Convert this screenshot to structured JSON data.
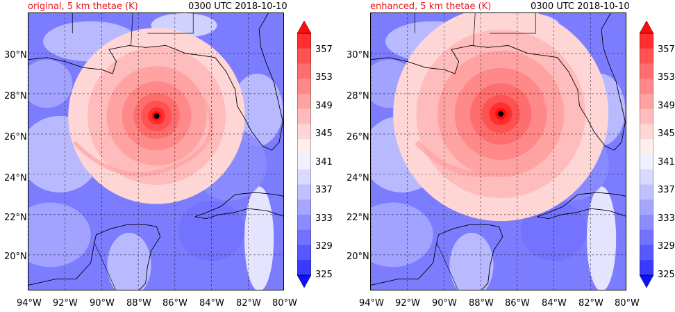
{
  "panels": [
    {
      "title": "original, 5 km thetae (K)",
      "time": "0300 UTC 2018-10-10",
      "eye": {
        "lon": -87.0,
        "lat": 26.9
      }
    },
    {
      "title": "enhanced, 5 km thetae (K)",
      "time": "0300 UTC 2018-10-10",
      "eye": {
        "lon": -86.9,
        "lat": 27.0
      }
    }
  ],
  "axes": {
    "lon_labels": [
      "94°W",
      "92°W",
      "90°W",
      "88°W",
      "86°W",
      "84°W",
      "82°W",
      "80°W"
    ],
    "lat_labels": [
      "30°N",
      "28°N",
      "26°N",
      "24°N",
      "22°N",
      "20°N"
    ],
    "lon_values": [
      -94,
      -92,
      -90,
      -88,
      -86,
      -84,
      -82,
      -80
    ],
    "lat_values": [
      30,
      28,
      26,
      24,
      22,
      20
    ],
    "lon_range": [
      -94,
      -80
    ],
    "lat_range": [
      18.2,
      32
    ]
  },
  "colorbar": {
    "labels": [
      "357",
      "353",
      "349",
      "345",
      "341",
      "337",
      "333",
      "329",
      "325"
    ],
    "levels": [
      325,
      327,
      329,
      331,
      333,
      335,
      337,
      339,
      341,
      343,
      345,
      347,
      349,
      351,
      353,
      355,
      357,
      359
    ],
    "colors": [
      "#1010ff",
      "#3a3aff",
      "#5858ff",
      "#7272ff",
      "#8c8cff",
      "#a6a6ff",
      "#c0c0ff",
      "#dadaff",
      "#f0f0ff",
      "#ffeeee",
      "#ffd6d6",
      "#ffbcbc",
      "#ffa2a2",
      "#ff8888",
      "#ff6e6e",
      "#ff5252",
      "#ff2f2f",
      "#ff0d0d"
    ],
    "extend": "both"
  },
  "colors": {
    "title_accent": "#e8141a",
    "background_blue": "#7c7cff",
    "eye_marker": "#000000"
  }
}
